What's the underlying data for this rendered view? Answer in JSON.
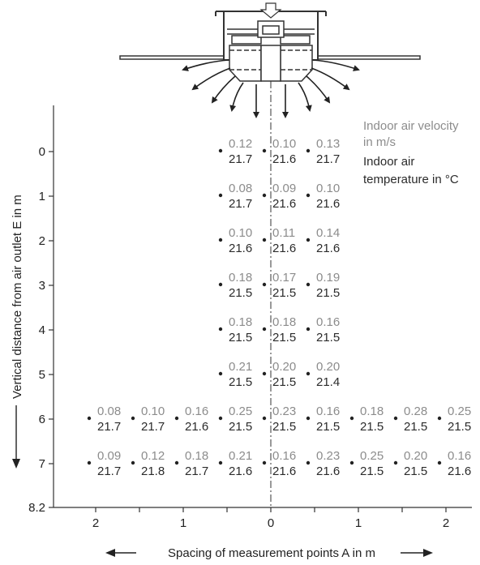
{
  "legend": {
    "velocity_line1": "Indoor air velocity",
    "velocity_line2": "in m/s",
    "temperature_line1": "Indoor air",
    "temperature_line2": "temperature in °C"
  },
  "axes": {
    "y_label": "Vertical distance from air outlet E in m",
    "x_label": "Spacing of measurement points A in m",
    "y_ticks": [
      "0",
      "1",
      "2",
      "3",
      "4",
      "5",
      "6",
      "7",
      "8.2"
    ],
    "x_ticks": [
      "2",
      "1",
      "0",
      "1",
      "2"
    ]
  },
  "colors": {
    "velocity": "#8c8c8c",
    "temperature": "#2b2b2b",
    "lines": "#333333"
  },
  "measurements": [
    {
      "depth": 0,
      "x": -0.5,
      "velocity": "0.12",
      "temperature": "21.7"
    },
    {
      "depth": 0,
      "x": 0,
      "velocity": "0.10",
      "temperature": "21.6"
    },
    {
      "depth": 0,
      "x": 0.5,
      "velocity": "0.13",
      "temperature": "21.7"
    },
    {
      "depth": 1,
      "x": -0.5,
      "velocity": "0.08",
      "temperature": "21.7"
    },
    {
      "depth": 1,
      "x": 0,
      "velocity": "0.09",
      "temperature": "21.6"
    },
    {
      "depth": 1,
      "x": 0.5,
      "velocity": "0.10",
      "temperature": "21.6"
    },
    {
      "depth": 2,
      "x": -0.5,
      "velocity": "0.10",
      "temperature": "21.6"
    },
    {
      "depth": 2,
      "x": 0,
      "velocity": "0.11",
      "temperature": "21.6"
    },
    {
      "depth": 2,
      "x": 0.5,
      "velocity": "0.14",
      "temperature": "21.6"
    },
    {
      "depth": 3,
      "x": -0.5,
      "velocity": "0.18",
      "temperature": "21.5"
    },
    {
      "depth": 3,
      "x": 0,
      "velocity": "0.17",
      "temperature": "21.5"
    },
    {
      "depth": 3,
      "x": 0.5,
      "velocity": "0.19",
      "temperature": "21.5"
    },
    {
      "depth": 4,
      "x": -0.5,
      "velocity": "0.18",
      "temperature": "21.5"
    },
    {
      "depth": 4,
      "x": 0,
      "velocity": "0.18",
      "temperature": "21.5"
    },
    {
      "depth": 4,
      "x": 0.5,
      "velocity": "0.16",
      "temperature": "21.5"
    },
    {
      "depth": 5,
      "x": -0.5,
      "velocity": "0.21",
      "temperature": "21.5"
    },
    {
      "depth": 5,
      "x": 0,
      "velocity": "0.20",
      "temperature": "21.5"
    },
    {
      "depth": 5,
      "x": 0.5,
      "velocity": "0.20",
      "temperature": "21.4"
    },
    {
      "depth": 6,
      "x": -2,
      "velocity": "0.08",
      "temperature": "21.7"
    },
    {
      "depth": 6,
      "x": -1.5,
      "velocity": "0.10",
      "temperature": "21.7"
    },
    {
      "depth": 6,
      "x": -1,
      "velocity": "0.16",
      "temperature": "21.6"
    },
    {
      "depth": 6,
      "x": -0.5,
      "velocity": "0.25",
      "temperature": "21.5"
    },
    {
      "depth": 6,
      "x": 0,
      "velocity": "0.23",
      "temperature": "21.5"
    },
    {
      "depth": 6,
      "x": 0.5,
      "velocity": "0.16",
      "temperature": "21.5"
    },
    {
      "depth": 6,
      "x": 1,
      "velocity": "0.18",
      "temperature": "21.5"
    },
    {
      "depth": 6,
      "x": 1.5,
      "velocity": "0.28",
      "temperature": "21.5"
    },
    {
      "depth": 6,
      "x": 2,
      "velocity": "0.25",
      "temperature": "21.5"
    },
    {
      "depth": 7,
      "x": -2,
      "velocity": "0.09",
      "temperature": "21.7"
    },
    {
      "depth": 7,
      "x": -1.5,
      "velocity": "0.12",
      "temperature": "21.8"
    },
    {
      "depth": 7,
      "x": -1,
      "velocity": "0.18",
      "temperature": "21.7"
    },
    {
      "depth": 7,
      "x": -0.5,
      "velocity": "0.21",
      "temperature": "21.6"
    },
    {
      "depth": 7,
      "x": 0,
      "velocity": "0.16",
      "temperature": "21.6"
    },
    {
      "depth": 7,
      "x": 0.5,
      "velocity": "0.23",
      "temperature": "21.6"
    },
    {
      "depth": 7,
      "x": 1,
      "velocity": "0.25",
      "temperature": "21.5"
    },
    {
      "depth": 7,
      "x": 1.5,
      "velocity": "0.20",
      "temperature": "21.5"
    },
    {
      "depth": 7,
      "x": 2,
      "velocity": "0.16",
      "temperature": "21.6"
    }
  ]
}
